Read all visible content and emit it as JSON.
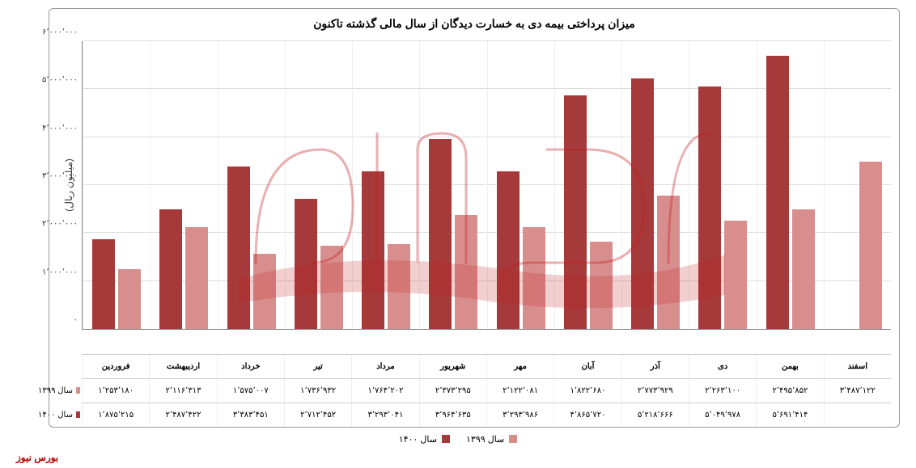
{
  "chart": {
    "type": "bar",
    "title": "میزان پرداختی بیمه دی به خسارت دیدگان از سال مالی گذشته تاکنون",
    "y_axis_label": "(میلیون ریال)",
    "ylim": [
      0,
      6000000
    ],
    "ytick_step": 1000000,
    "yticks": [
      "۰",
      "۱٬۰۰۰٬۰۰۰",
      "۲٬۰۰۰٬۰۰۰",
      "۳٬۰۰۰٬۰۰۰",
      "۴٬۰۰۰٬۰۰۰",
      "۵٬۰۰۰٬۰۰۰",
      "۶٬۰۰۰٬۰۰۰"
    ],
    "background_color": "#ffffff",
    "grid_color": "#dddddd",
    "categories": [
      "فروردین",
      "اردیبهشت",
      "خرداد",
      "تیر",
      "مرداد",
      "شهریور",
      "مهر",
      "آبان",
      "آذر",
      "دی",
      "بهمن",
      "اسفند"
    ],
    "series": [
      {
        "name": "سال ۱۳۹۹",
        "color": "#d98e8e",
        "values": [
          1253180,
          2116313,
          1575007,
          1736932,
          1764202,
          2373295,
          2122081,
          1822680,
          2773929,
          2263100,
          2495852,
          3487122
        ],
        "labels": [
          "۱٬۲۵۳٬۱۸۰",
          "۲٬۱۱۶٬۳۱۳",
          "۱٬۵۷۵٬۰۰۷",
          "۱٬۷۳۶٬۹۳۲",
          "۱٬۷۶۴٬۲۰۲",
          "۲٬۳۷۳٬۲۹۵",
          "۲٬۱۲۲٬۰۸۱",
          "۱٬۸۲۲٬۶۸۰",
          "۲٬۷۷۳٬۹۲۹",
          "۲٬۲۶۳٬۱۰۰",
          "۲٬۴۹۵٬۸۵۲",
          "۳٬۴۸۷٬۱۲۲"
        ]
      },
      {
        "name": "سال ۱۴۰۰",
        "color": "#a63939",
        "values": [
          1875215,
          2487422,
          3383451,
          2712452,
          3293041,
          3964635,
          3293986,
          4865720,
          5218666,
          5049978,
          5691414,
          null
        ],
        "labels": [
          "۱٬۸۷۵٬۲۱۵",
          "۲٬۴۸۷٬۴۲۲",
          "۳٬۳۸۳٬۴۵۱",
          "۲٬۷۱۲٬۴۵۲",
          "۳٬۲۹۳٬۰۴۱",
          "۳٬۹۶۴٬۶۳۵",
          "۳٬۲۹۳٬۹۸۶",
          "۴٬۸۶۵٬۷۲۰",
          "۵٬۲۱۸٬۶۶۶",
          "۵٬۰۴۹٬۹۷۸",
          "۵٬۶۹۱٬۴۱۴",
          ""
        ]
      }
    ],
    "legend_items": [
      {
        "label": "سال ۱۳۹۹",
        "color": "#d98e8e"
      },
      {
        "label": "سال ۱۴۰۰",
        "color": "#a63939"
      }
    ],
    "footer": "بورس نیوز",
    "watermark_text": "بورس نیوز",
    "watermark_color": "#c41e1e"
  }
}
